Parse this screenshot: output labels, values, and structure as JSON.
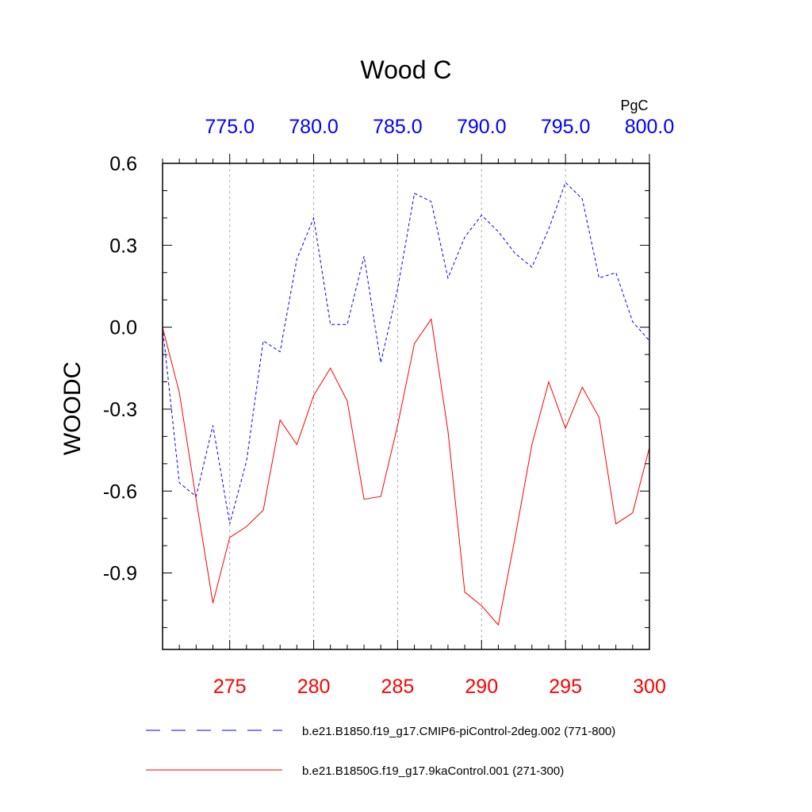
{
  "chart_data": {
    "type": "line",
    "title": "Wood C",
    "ylabel": "WOODC",
    "units": "PgC",
    "ylim": [
      -1.18,
      0.6
    ],
    "y_ticks": [
      "0.6",
      "0.3",
      "0.0",
      "-0.3",
      "-0.6",
      "-0.9"
    ],
    "y_tick_values": [
      0.6,
      0.3,
      0.0,
      -0.3,
      -0.6,
      -0.9
    ],
    "bottom_axis": {
      "range": [
        271,
        300
      ],
      "ticks": [
        "275",
        "280",
        "285",
        "290",
        "295",
        "300"
      ],
      "tick_values": [
        275,
        280,
        285,
        290,
        295,
        300
      ],
      "color": "#ff0000"
    },
    "top_axis": {
      "range": [
        771,
        800
      ],
      "ticks": [
        "775.0",
        "780.0",
        "785.0",
        "790.0",
        "795.0",
        "800.0"
      ],
      "tick_values": [
        775,
        780,
        785,
        790,
        795,
        800
      ],
      "color": "#0000ff"
    },
    "grid": "vertical dashed at major ticks",
    "legend_position": "bottom",
    "series": [
      {
        "name": "b.e21.B1850.f19_g17.CMIP6-piControl-2deg.002 (771-800)",
        "axis": "top",
        "color": "#0000ff",
        "style": "dashed",
        "x": [
          771,
          772,
          773,
          774,
          775,
          776,
          777,
          778,
          779,
          780,
          781,
          782,
          783,
          784,
          785,
          786,
          787,
          788,
          789,
          790,
          791,
          792,
          793,
          794,
          795,
          796,
          797,
          798,
          799,
          800
        ],
        "values": [
          0.0,
          -0.57,
          -0.62,
          -0.36,
          -0.72,
          -0.49,
          -0.05,
          -0.09,
          0.25,
          0.4,
          0.01,
          0.01,
          0.26,
          -0.13,
          0.14,
          0.49,
          0.46,
          0.18,
          0.33,
          0.41,
          0.35,
          0.27,
          0.22,
          0.36,
          0.53,
          0.47,
          0.18,
          0.2,
          0.02,
          -0.05
        ]
      },
      {
        "name": "b.e21.B1850G.f19_g17.9kaControl.001 (271-300)",
        "axis": "bottom",
        "color": "#ff0000",
        "style": "solid",
        "x": [
          271,
          272,
          273,
          274,
          275,
          276,
          277,
          278,
          279,
          280,
          281,
          282,
          283,
          284,
          285,
          286,
          287,
          288,
          289,
          290,
          291,
          292,
          293,
          294,
          295,
          296,
          297,
          298,
          299,
          300
        ],
        "values": [
          0.0,
          -0.24,
          -0.63,
          -1.01,
          -0.77,
          -0.73,
          -0.67,
          -0.34,
          -0.43,
          -0.25,
          -0.15,
          -0.27,
          -0.63,
          -0.62,
          -0.36,
          -0.06,
          0.03,
          -0.38,
          -0.97,
          -1.02,
          -1.09,
          -0.77,
          -0.43,
          -0.2,
          -0.37,
          -0.22,
          -0.33,
          -0.72,
          -0.68,
          -0.44
        ]
      }
    ]
  }
}
